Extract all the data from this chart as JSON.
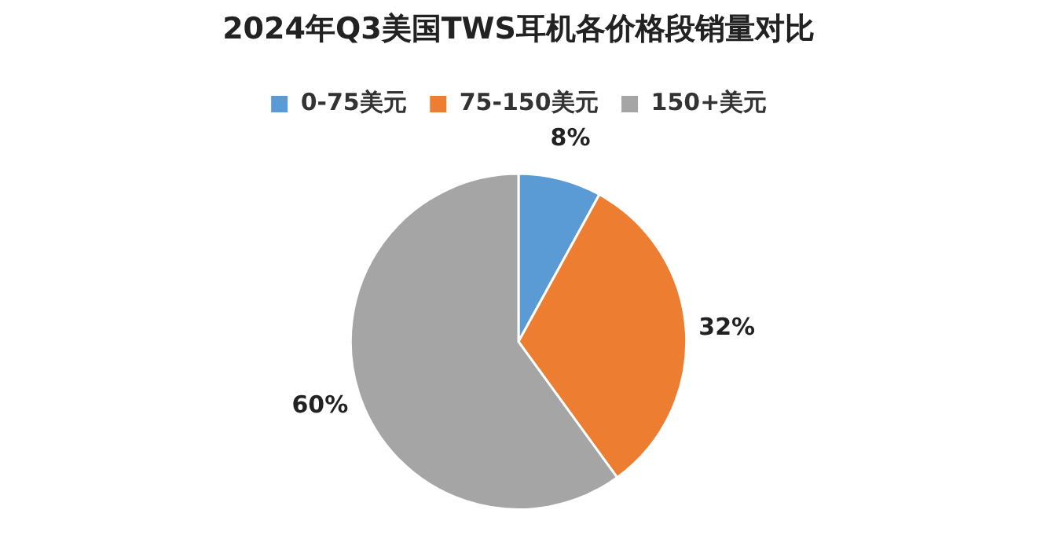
{
  "chart_data": {
    "type": "pie",
    "title": "2024年Q3美国TWS耳机各价格段销量对比",
    "categories": [
      "0-75美元",
      "75-150美元",
      "150+美元"
    ],
    "values": [
      8,
      32,
      60
    ],
    "colors": [
      "#5b9bd5",
      "#ed7d31",
      "#a5a5a5"
    ],
    "legend": "top",
    "value_labels": [
      "8%",
      "32%",
      "60%"
    ]
  }
}
